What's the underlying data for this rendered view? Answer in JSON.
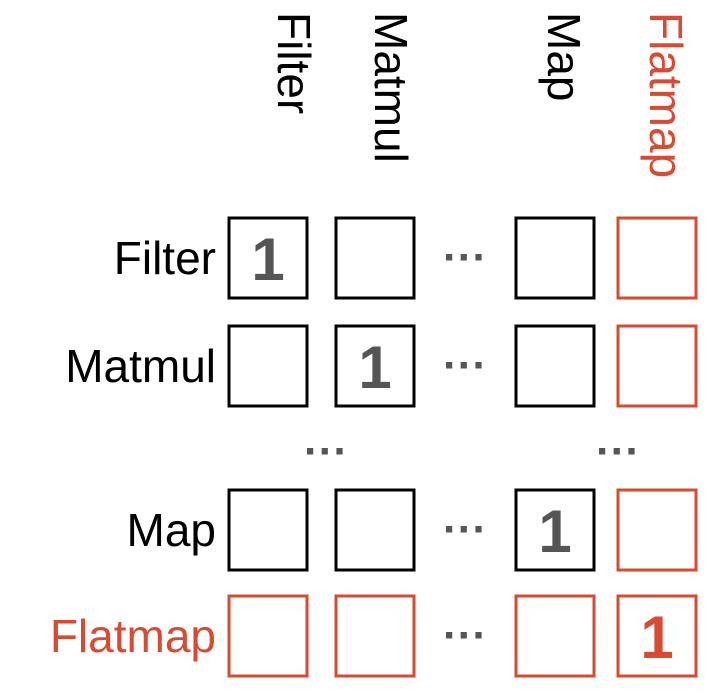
{
  "colors": {
    "base": "#000000",
    "highlight": "#d94a33",
    "cell_text": "#555555"
  },
  "column_headers": [
    "Filter",
    "Matmul",
    "Map",
    "Flatmap"
  ],
  "row_headers": [
    "Filter",
    "Matmul",
    "Map",
    "Flatmap"
  ],
  "highlighted_label": "Flatmap",
  "ellipsis": "···",
  "rows": [
    {
      "label": "Filter",
      "cells": [
        "1",
        "",
        "",
        ""
      ]
    },
    {
      "label": "Matmul",
      "cells": [
        "",
        "1",
        "",
        ""
      ]
    },
    {
      "label": "Map",
      "cells": [
        "",
        "",
        "1",
        ""
      ]
    },
    {
      "label": "Flatmap",
      "cells": [
        "",
        "",
        "",
        "1"
      ]
    }
  ]
}
